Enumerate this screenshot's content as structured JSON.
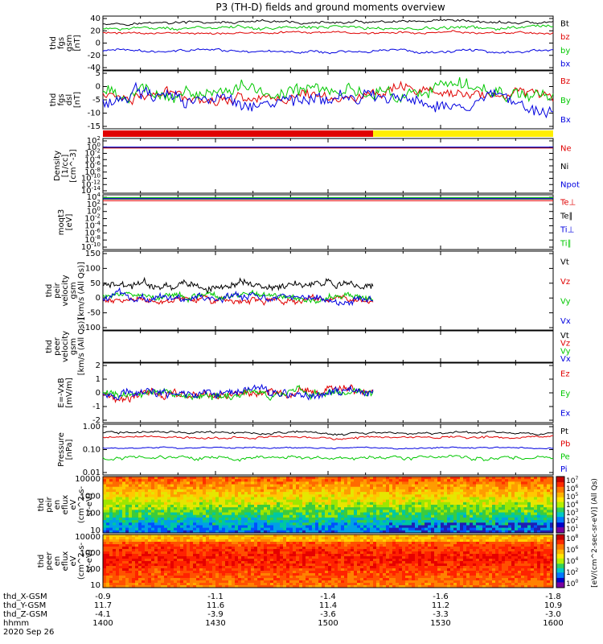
{
  "title": "P3 (TH-D) fields and ground moments overview",
  "colors": {
    "black": "#000000",
    "red": "#e00000",
    "green": "#00c800",
    "blue": "#0000e0",
    "yellow": "#ffee00"
  },
  "orbit_labels": [
    "thd_X-GSM",
    "thd_Y-GSM",
    "thd_Z-GSM",
    "hhmm",
    "2020 Sep 26"
  ],
  "orbit_values": {
    "x_gsm": [
      "-0.9",
      "-1.1",
      "-1.4",
      "-1.6",
      "-1.8"
    ],
    "y_gsm": [
      "11.7",
      "11.6",
      "11.4",
      "11.2",
      "10.9"
    ],
    "z_gsm": [
      "-4.1",
      "-3.9",
      "-3.6",
      "-3.3",
      "-3.0"
    ],
    "hhmm": [
      "1400",
      "1430",
      "1500",
      "1530",
      "1600"
    ]
  },
  "colorbar": {
    "label": "[eV/(cm^2-sec-sr-eV)] (All Qs)",
    "upper_ticks": [
      "10^7",
      "10^6",
      "10^5",
      "10^4",
      "10^3",
      "10^2",
      "10^1"
    ],
    "lower_ticks": [
      "10^8",
      "10^6",
      "10^4",
      "10^2",
      "10^0"
    ]
  },
  "chart_data": [
    {
      "type": "line",
      "panel": "fgs_gsm",
      "ylabel": [
        "thd",
        "fgs",
        "gsm",
        "[nT]"
      ],
      "ylim": [
        -40,
        40
      ],
      "yticks": [
        "40",
        "20",
        "0",
        "-20",
        "-40"
      ],
      "series": [
        {
          "name": "Bt",
          "color": "#000000",
          "level": 30,
          "noise": 2.5
        },
        {
          "name": "bz",
          "color": "#e00000",
          "level": 15,
          "noise": 2
        },
        {
          "name": "by",
          "color": "#00c800",
          "level": 22,
          "noise": 3
        },
        {
          "name": "bx",
          "color": "#0000e0",
          "level": -12,
          "noise": 2.5
        }
      ]
    },
    {
      "type": "line",
      "panel": "fgs_dsl",
      "ylabel": [
        "thd",
        "fgs",
        "dsl",
        "[nT]"
      ],
      "ylim": [
        -18,
        8
      ],
      "yticks": [
        "5",
        "0",
        "-5",
        "-10",
        "-15"
      ],
      "series": [
        {
          "name": "Bz",
          "color": "#e00000",
          "level": -3,
          "noise": 3
        },
        {
          "name": "By",
          "color": "#00c800",
          "level": -1,
          "noise": 4
        },
        {
          "name": "Bx",
          "color": "#0000e0",
          "level": -5,
          "noise": 4
        }
      ]
    },
    {
      "type": "bar",
      "panel": "mode_bar",
      "segments": [
        {
          "start": "14:00",
          "end": "15:12",
          "color": "#e00000"
        },
        {
          "start": "15:12",
          "end": "16:00",
          "color": "#ffee00"
        }
      ]
    },
    {
      "type": "line",
      "panel": "density",
      "ylabel": [
        "Density",
        "[1/cc]",
        "[cm^-3]"
      ],
      "scale": "log",
      "yticks": [
        "10^2",
        "10^0",
        "10^-2",
        "10^-4",
        "10^-6",
        "10^-8",
        "10^-10",
        "10^-12",
        "10^-14"
      ],
      "series": [
        {
          "name": "Ne",
          "color": "#e00000",
          "level": 0.5,
          "noise": 0
        },
        {
          "name": "Ni",
          "color": "#000000",
          "level": 0.8,
          "noise": 0
        },
        {
          "name": "Npot",
          "color": "#0000e0",
          "level": 1,
          "noise": 0
        }
      ]
    },
    {
      "type": "line",
      "panel": "temperature",
      "ylabel": [
        "moqt3",
        "[eV]"
      ],
      "scale": "log",
      "yticks": [
        "10^4",
        "10^2",
        "10^0",
        "10^-2",
        "10^-4",
        "10^-6",
        "10^-8",
        "10^-10"
      ],
      "series": [
        {
          "name": "Te⊥",
          "color": "#e00000",
          "level": 1000,
          "noise": 0
        },
        {
          "name": "Te∥",
          "color": "#000000",
          "level": 3000,
          "noise": 0
        },
        {
          "name": "Ti⊥",
          "color": "#0000e0",
          "level": 5000,
          "noise": 0
        },
        {
          "name": "Ti∥",
          "color": "#00c800",
          "level": 8000,
          "noise": 0
        }
      ]
    },
    {
      "type": "line",
      "panel": "peir_velocity",
      "ylabel": [
        "thd",
        "peir",
        "velocity",
        "gsm",
        "[km/s (All Qs)]"
      ],
      "ylim": [
        -100,
        150
      ],
      "yticks": [
        "150",
        "100",
        "50",
        "0",
        "-50",
        "-100"
      ],
      "x_end": "15:12",
      "series": [
        {
          "name": "Vt",
          "color": "#000000",
          "level": 40,
          "noise": 15
        },
        {
          "name": "Vz",
          "color": "#e00000",
          "level": -5,
          "noise": 12
        },
        {
          "name": "Vy",
          "color": "#00c800",
          "level": 5,
          "noise": 12
        },
        {
          "name": "Vx",
          "color": "#0000e0",
          "level": 0,
          "noise": 15
        }
      ]
    },
    {
      "type": "line",
      "panel": "peer_velocity",
      "ylabel": [
        "thd",
        "peer",
        "velocity",
        "gsm",
        "[km/s (All Qs)]"
      ],
      "series": [
        {
          "name": "Vt",
          "color": "#000000"
        },
        {
          "name": "Vz",
          "color": "#e00000"
        },
        {
          "name": "Vy",
          "color": "#00c800"
        },
        {
          "name": "Vx",
          "color": "#0000e0"
        }
      ]
    },
    {
      "type": "line",
      "panel": "e_field",
      "ylabel": [
        "E=-VxB",
        "[mV/m]"
      ],
      "ylim": [
        -2.6,
        2.6
      ],
      "yticks": [
        "2",
        "1",
        "0",
        "-1",
        "-2"
      ],
      "x_end": "15:12",
      "series": [
        {
          "name": "Ez",
          "color": "#e00000",
          "level": 0,
          "noise": 0.45
        },
        {
          "name": "Ey",
          "color": "#00c800",
          "level": 0,
          "noise": 0.4
        },
        {
          "name": "Ex",
          "color": "#0000e0",
          "level": 0,
          "noise": 0.45
        }
      ]
    },
    {
      "type": "line",
      "panel": "pressure",
      "ylabel": [
        "Pressure",
        "[nPa]"
      ],
      "scale": "log",
      "yticks": [
        "1.00",
        "0.10",
        "0.01"
      ],
      "series": [
        {
          "name": "Pt",
          "color": "#000000",
          "level": 0.55,
          "noise": 0.08
        },
        {
          "name": "Pb",
          "color": "#e00000",
          "level": 0.35,
          "noise": 0.05
        },
        {
          "name": "Pe",
          "color": "#00c800",
          "level": 0.045,
          "noise": 0.01
        },
        {
          "name": "Pi",
          "color": "#0000e0",
          "level": 0.12,
          "noise": 0.01
        }
      ]
    },
    {
      "type": "heatmap",
      "panel": "peir_spectrogram",
      "ylabel": [
        "thd",
        "peir",
        "en",
        "eflux",
        "eV",
        "(cm^2-s-",
        "sr-eV)"
      ],
      "scale": "log",
      "yticks": [
        "10000",
        "1000",
        "100",
        "10"
      ]
    },
    {
      "type": "heatmap",
      "panel": "peer_spectrogram",
      "ylabel": [
        "thd",
        "peer",
        "en",
        "eflux",
        "eV",
        "(cm^2-s-",
        "sr-eV)"
      ],
      "scale": "log",
      "yticks": [
        "10000",
        "1000",
        "100",
        "10"
      ]
    }
  ]
}
